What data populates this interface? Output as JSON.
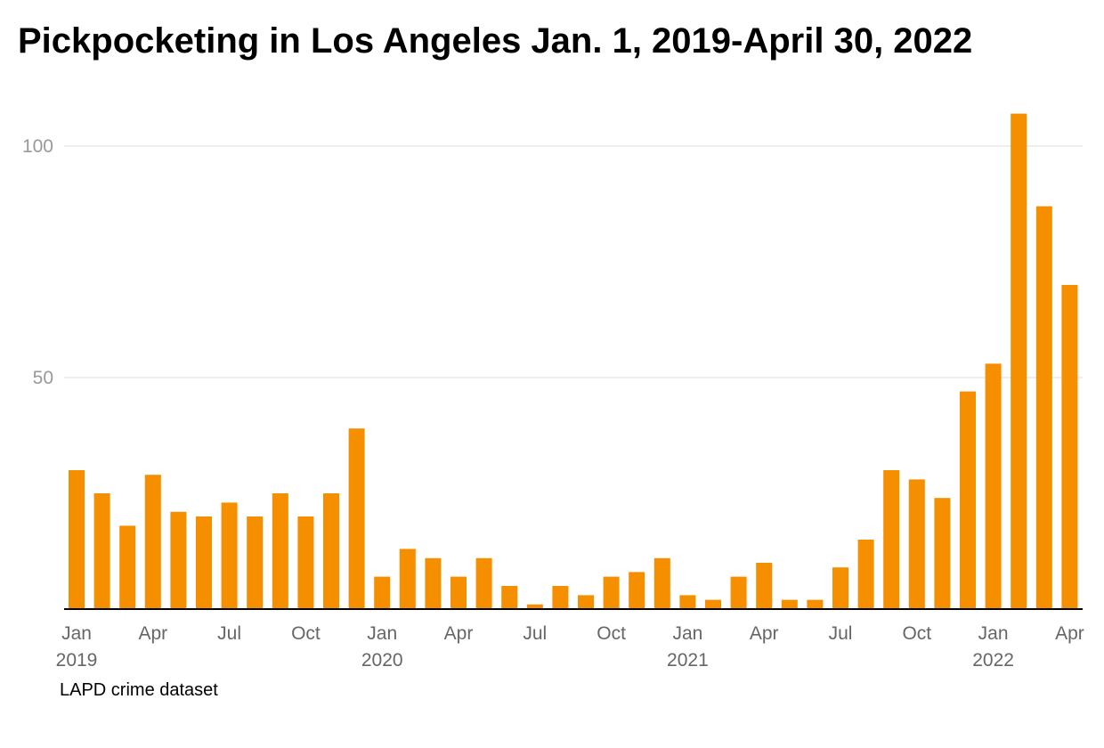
{
  "chart_data": {
    "type": "bar",
    "title": "Pickpocketing in Los Angeles Jan. 1, 2019-April 30, 2022",
    "source": "LAPD crime dataset",
    "bar_color": "#f58f00",
    "grid": true,
    "ylim": [
      0,
      110
    ],
    "yticks": [
      {
        "value": 50,
        "label": "50"
      },
      {
        "value": 100,
        "label": "100"
      }
    ],
    "x_tick_labels": [
      {
        "index": 0,
        "month": "Jan",
        "year": "2019"
      },
      {
        "index": 3,
        "month": "Apr",
        "year": ""
      },
      {
        "index": 6,
        "month": "Jul",
        "year": ""
      },
      {
        "index": 9,
        "month": "Oct",
        "year": ""
      },
      {
        "index": 12,
        "month": "Jan",
        "year": "2020"
      },
      {
        "index": 15,
        "month": "Apr",
        "year": ""
      },
      {
        "index": 18,
        "month": "Jul",
        "year": ""
      },
      {
        "index": 21,
        "month": "Oct",
        "year": ""
      },
      {
        "index": 24,
        "month": "Jan",
        "year": "2021"
      },
      {
        "index": 27,
        "month": "Apr",
        "year": ""
      },
      {
        "index": 30,
        "month": "Jul",
        "year": ""
      },
      {
        "index": 33,
        "month": "Oct",
        "year": ""
      },
      {
        "index": 36,
        "month": "Jan",
        "year": "2022"
      },
      {
        "index": 39,
        "month": "Apr",
        "year": ""
      }
    ],
    "categories": [
      "2019-01",
      "2019-02",
      "2019-03",
      "2019-04",
      "2019-05",
      "2019-06",
      "2019-07",
      "2019-08",
      "2019-09",
      "2019-10",
      "2019-11",
      "2019-12",
      "2020-01",
      "2020-02",
      "2020-03",
      "2020-04",
      "2020-05",
      "2020-06",
      "2020-07",
      "2020-08",
      "2020-09",
      "2020-10",
      "2020-11",
      "2020-12",
      "2021-01",
      "2021-02",
      "2021-03",
      "2021-04",
      "2021-05",
      "2021-06",
      "2021-07",
      "2021-08",
      "2021-09",
      "2021-10",
      "2021-11",
      "2021-12",
      "2022-01",
      "2022-02",
      "2022-03",
      "2022-04"
    ],
    "values": [
      30,
      25,
      18,
      29,
      21,
      20,
      23,
      20,
      25,
      20,
      25,
      39,
      7,
      13,
      11,
      7,
      11,
      5,
      1,
      5,
      3,
      7,
      8,
      11,
      3,
      2,
      7,
      10,
      2,
      2,
      9,
      15,
      30,
      28,
      24,
      47,
      53,
      107,
      87,
      70
    ]
  }
}
